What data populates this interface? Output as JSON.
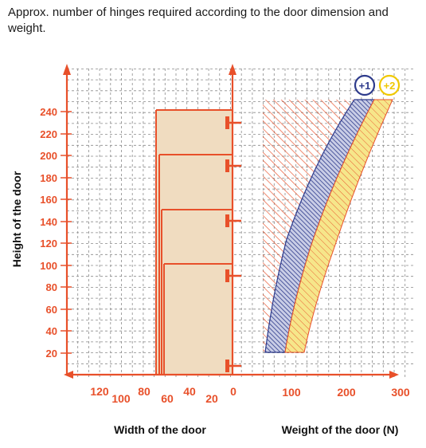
{
  "caption": "Approx. number of hinges required according to the door dimension and weight.",
  "y_axis": {
    "label": "Height of the door",
    "ticks": [
      240,
      220,
      200,
      180,
      160,
      140,
      120,
      100,
      80,
      60,
      40,
      20
    ]
  },
  "width_axis": {
    "label": "Width of the door",
    "ticks": [
      "120",
      "100",
      "80",
      "60",
      "40",
      "20",
      "0"
    ]
  },
  "weight_axis": {
    "label": "Weight of the door (N)",
    "ticks": [
      "100",
      "200",
      "300"
    ]
  },
  "badges": {
    "plus_one": "+1",
    "plus_two": "+2"
  },
  "door": {
    "width_range": [
      0,
      70
    ],
    "height_max": 240,
    "hinges_at_heights": [
      225,
      175,
      125,
      75,
      0
    ]
  },
  "colors": {
    "axis": "#e8502a",
    "grid": "#777777",
    "door_fill": "#f0dcc0",
    "blue_band": "#2e3b8c",
    "yellow_band": "#f4e07a",
    "badge_blue": "#2e3b8c",
    "badge_yellow": "#f0c800",
    "hatch": "#e8502a"
  }
}
